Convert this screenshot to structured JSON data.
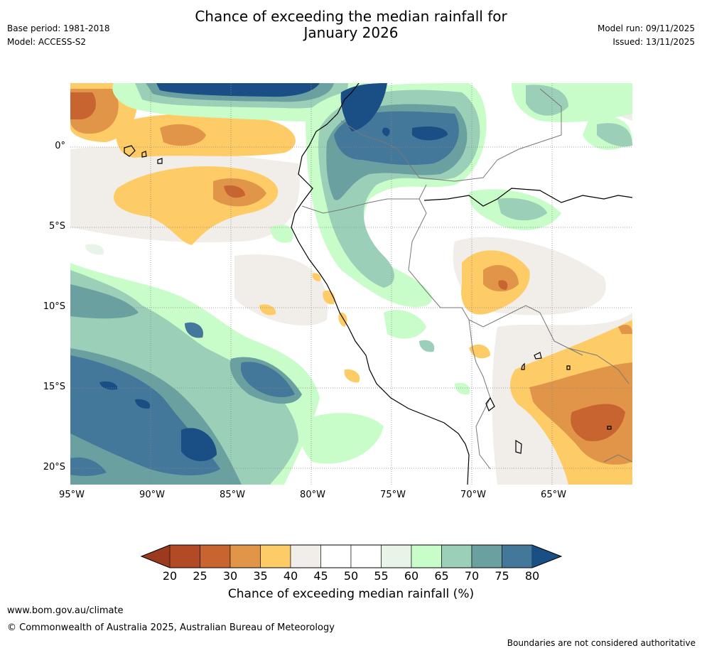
{
  "header": {
    "title_line1": "Chance of exceeding the median rainfall for",
    "title_line2": "January 2026",
    "base_period": "Base period: 1981-2018",
    "model": "Model: ACCESS-S2",
    "model_run": "Model run: 09/11/2025",
    "issued": "Issued: 13/11/2025"
  },
  "map": {
    "lon_labels": [
      "95°W",
      "90°W",
      "85°W",
      "80°W",
      "75°W",
      "70°W",
      "65°W"
    ],
    "lat_labels": [
      "0°",
      "5°S",
      "10°S",
      "15°S",
      "20°S"
    ],
    "lon_values": [
      -95,
      -90,
      -85,
      -80,
      -75,
      -70,
      -65
    ],
    "lat_values": [
      0,
      -5,
      -10,
      -15,
      -20
    ],
    "extent": {
      "lon_min": -95,
      "lon_max": -60,
      "lat_min": -21,
      "lat_max": 4
    }
  },
  "colorbar": {
    "ticks": [
      "20",
      "25",
      "30",
      "35",
      "40",
      "45",
      "50",
      "55",
      "60",
      "65",
      "70",
      "75",
      "80"
    ],
    "colors": [
      "#b34a26",
      "#c8642f",
      "#e09548",
      "#fecc66",
      "#f1ede8",
      "#ffffff",
      "#ffffff",
      "#e8f4e8",
      "#c8fcc8",
      "#9ccfb8",
      "#6ba0a0",
      "#44789a"
    ],
    "under_color": "#9b3a1f",
    "over_color": "#1a4f86",
    "title": "Chance of exceeding median rainfall (%)"
  },
  "footer": {
    "url": "www.bom.gov.au/climate",
    "copyright": "© Commonwealth of Australia 2025, Australian Bureau of Meteorology",
    "disclaimer": "Boundaries are not considered authoritative"
  }
}
